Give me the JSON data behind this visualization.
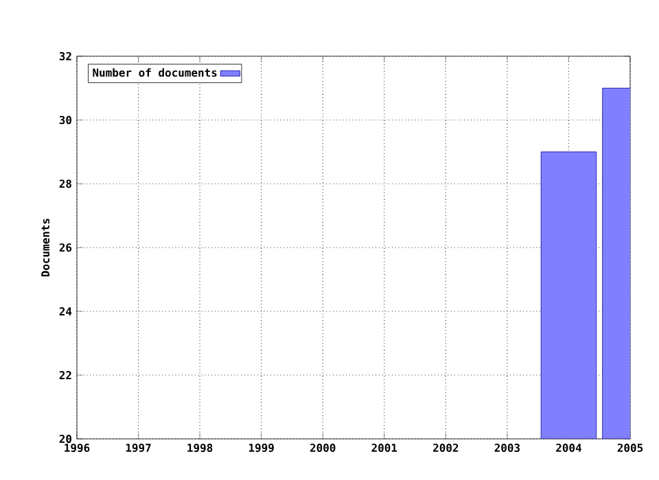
{
  "chart_data": {
    "type": "bar",
    "ylabel": "Documents",
    "x": [
      2004,
      2005
    ],
    "series": [
      {
        "name": "Number of documents",
        "color": "#8080ff",
        "values": [
          29,
          31
        ]
      }
    ],
    "xlim": [
      1996,
      2005
    ],
    "xticks": [
      1996,
      1997,
      1998,
      1999,
      2000,
      2001,
      2002,
      2003,
      2004,
      2005
    ],
    "ylim": [
      20,
      32
    ],
    "yticks": [
      20,
      22,
      24,
      26,
      28,
      30,
      32
    ],
    "grid": true,
    "legend": "top left"
  }
}
